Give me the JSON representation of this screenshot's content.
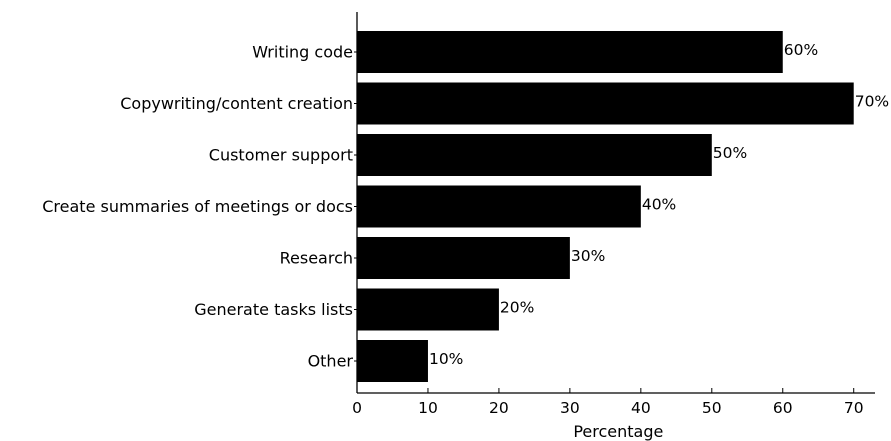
{
  "chart_data": {
    "type": "bar",
    "orientation": "horizontal",
    "categories": [
      "Writing code",
      "Copywriting/content creation",
      "Customer support",
      "Create summaries of meetings or docs",
      "Research",
      "Generate tasks lists",
      "Other"
    ],
    "values": [
      60,
      70,
      50,
      40,
      30,
      20,
      10
    ],
    "data_labels": [
      "60%",
      "70%",
      "50%",
      "40%",
      "30%",
      "20%",
      "10%"
    ],
    "xlabel": "Percentage",
    "xlim": [
      0,
      73
    ],
    "xticks": [
      0,
      10,
      20,
      30,
      40,
      50,
      60,
      70
    ],
    "grid": false,
    "bar_color": "#000000"
  }
}
